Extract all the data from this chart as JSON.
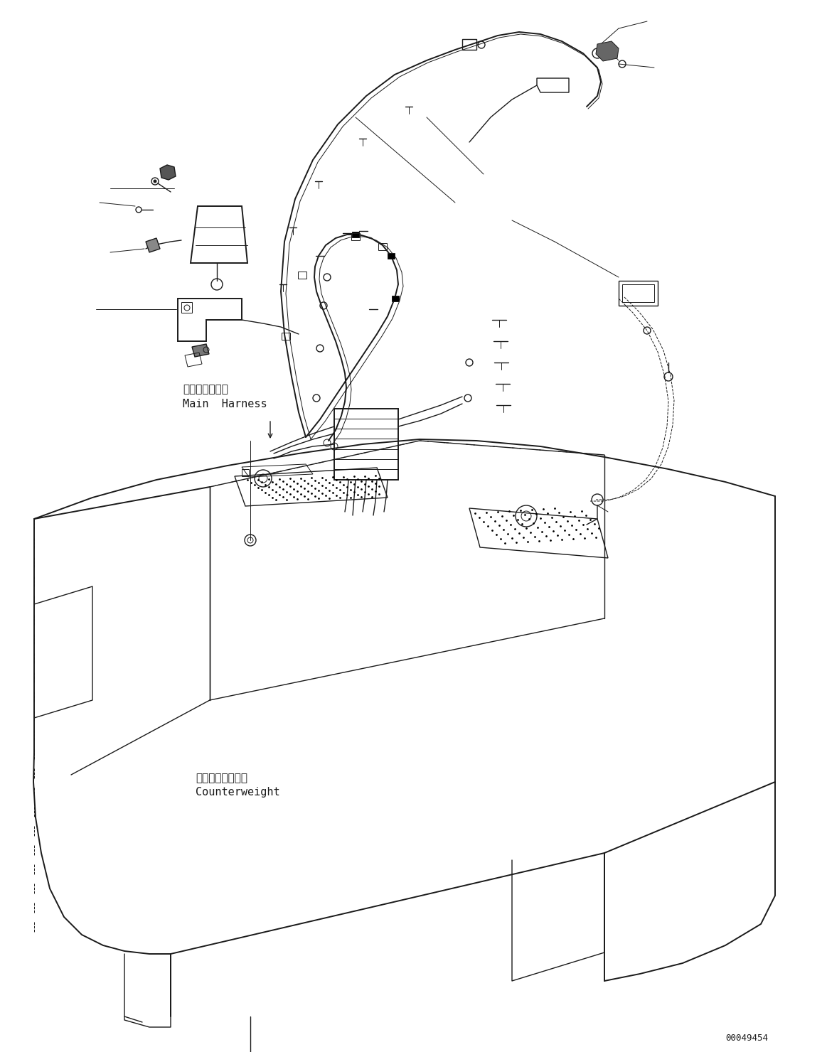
{
  "background_color": "#ffffff",
  "line_color": "#1a1a1a",
  "figure_id": "00049454",
  "labels": {
    "main_harness_ja": "メインハーネス",
    "main_harness_en": "Main  Harness",
    "counterweight_ja": "カウンタウエイト",
    "counterweight_en": "Counterweight"
  }
}
